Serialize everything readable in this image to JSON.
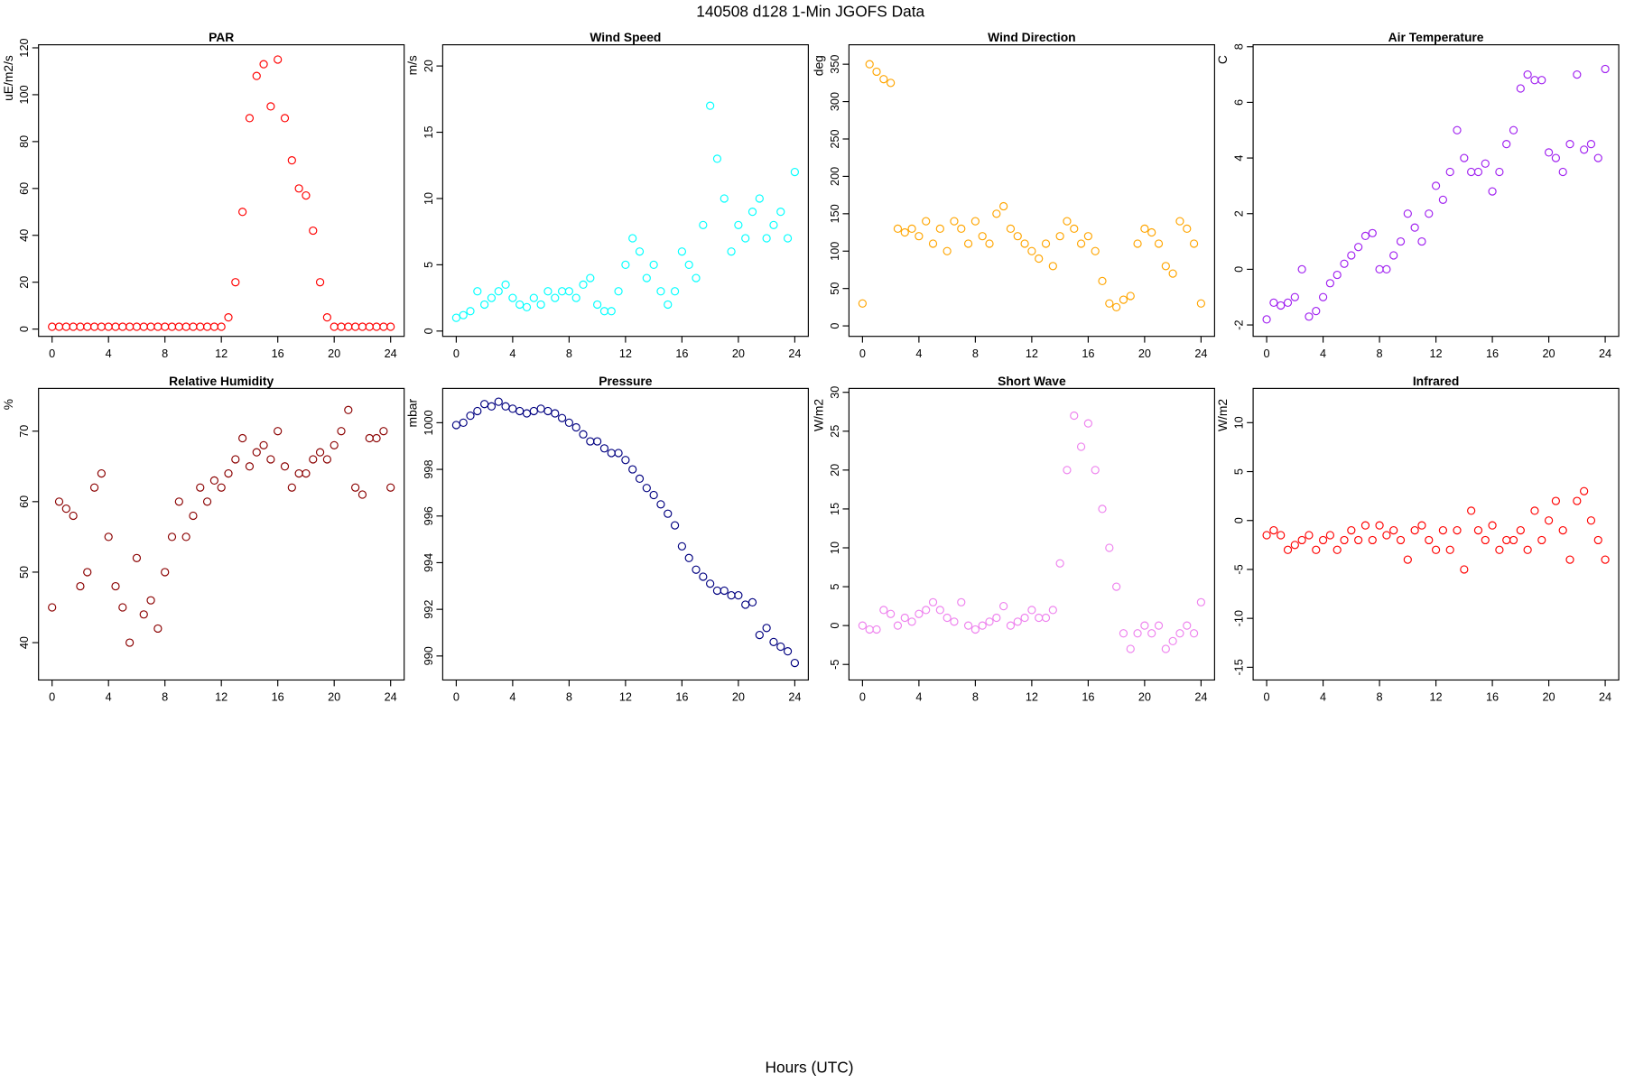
{
  "title": "140508   d128   1-Min  JGOFS Data",
  "xlabel": "Hours (UTC)",
  "chart_data": [
    {
      "type": "scatter",
      "title": "PAR",
      "ylabel": "uE/m2/s",
      "color": "#ff0000",
      "x": [
        0,
        0.5,
        1,
        1.5,
        2,
        2.5,
        3,
        3.5,
        4,
        4.5,
        5,
        5.5,
        6,
        6.5,
        7,
        7.5,
        8,
        8.5,
        9,
        9.5,
        10,
        10.5,
        11,
        11.5,
        12,
        12.5,
        13,
        13.5,
        14,
        14.5,
        15,
        15.5,
        16,
        16.5,
        17,
        17.5,
        18,
        18.5,
        19,
        19.5,
        20,
        20.5,
        21,
        21.5,
        22,
        22.5,
        23,
        23.5,
        24
      ],
      "values": [
        1,
        1,
        1,
        1,
        1,
        1,
        1,
        1,
        1,
        1,
        1,
        1,
        1,
        1,
        1,
        1,
        1,
        1,
        1,
        1,
        1,
        1,
        1,
        1,
        1,
        5,
        20,
        50,
        90,
        108,
        113,
        95,
        115,
        90,
        72,
        60,
        57,
        42,
        20,
        5,
        1,
        1,
        1,
        1,
        1,
        1,
        1,
        1,
        1
      ],
      "xlim": [
        -0.96,
        24.96
      ],
      "ylim": [
        -3.1,
        121.3
      ],
      "xticks": [
        0,
        4,
        8,
        12,
        16,
        20,
        24
      ],
      "yticks": [
        0,
        20,
        40,
        60,
        80,
        100,
        120
      ]
    },
    {
      "type": "scatter",
      "title": "Wind Speed",
      "ylabel": "m/s",
      "color": "#00ffff",
      "x": [
        0,
        0.5,
        1,
        1.5,
        2,
        2.5,
        3,
        3.5,
        4,
        4.5,
        5,
        5.5,
        6,
        6.5,
        7,
        7.5,
        8,
        8.5,
        9,
        9.5,
        10,
        10.5,
        11,
        11.5,
        12,
        12.5,
        13,
        13.5,
        14,
        14.5,
        15,
        15.5,
        16,
        16.5,
        17,
        17.5,
        18,
        18.5,
        19,
        19.5,
        20,
        20.5,
        21,
        21.5,
        22,
        22.5,
        23,
        23.5,
        24
      ],
      "values": [
        1,
        1.2,
        1.5,
        3,
        2,
        2.5,
        3,
        3.5,
        2.5,
        2,
        1.8,
        2.5,
        2,
        3,
        2.5,
        3,
        3,
        2.5,
        3.5,
        4,
        2,
        1.5,
        1.5,
        3,
        5,
        7,
        6,
        4,
        5,
        3,
        2,
        3,
        6,
        5,
        4,
        8,
        17,
        13,
        10,
        6,
        8,
        7,
        9,
        10,
        7,
        8,
        9,
        7,
        12
      ],
      "xlim": [
        -0.96,
        24.96
      ],
      "ylim": [
        -0.4,
        21.6
      ],
      "xticks": [
        0,
        4,
        8,
        12,
        16,
        20,
        24
      ],
      "yticks": [
        0,
        5,
        10,
        15,
        20
      ]
    },
    {
      "type": "scatter",
      "title": "Wind Direction",
      "ylabel": "deg",
      "color": "#ffa500",
      "x": [
        0,
        0.5,
        1,
        1.5,
        2,
        2.5,
        3,
        3.5,
        4,
        4.5,
        5,
        5.5,
        6,
        6.5,
        7,
        7.5,
        8,
        8.5,
        9,
        9.5,
        10,
        10.5,
        11,
        11.5,
        12,
        12.5,
        13,
        13.5,
        14,
        14.5,
        15,
        15.5,
        16,
        16.5,
        17,
        17.5,
        18,
        18.5,
        19,
        19.5,
        20,
        20.5,
        21,
        21.5,
        22,
        22.5,
        23,
        23.5,
        24
      ],
      "values": [
        30,
        350,
        340,
        330,
        325,
        130,
        125,
        130,
        120,
        140,
        110,
        130,
        100,
        140,
        130,
        110,
        140,
        120,
        110,
        150,
        160,
        130,
        120,
        110,
        100,
        90,
        110,
        80,
        120,
        140,
        130,
        110,
        120,
        100,
        60,
        30,
        25,
        35,
        40,
        110,
        130,
        125,
        110,
        80,
        70,
        140,
        130,
        110,
        30
      ],
      "xlim": [
        -0.96,
        24.96
      ],
      "ylim": [
        -14,
        376
      ],
      "xticks": [
        0,
        4,
        8,
        12,
        16,
        20,
        24
      ],
      "yticks": [
        0,
        50,
        100,
        150,
        200,
        250,
        300,
        350
      ]
    },
    {
      "type": "scatter",
      "title": "Air Temperature",
      "ylabel": "C",
      "color": "#a020f0",
      "x": [
        0,
        0.5,
        1,
        1.5,
        2,
        2.5,
        3,
        3.5,
        4,
        4.5,
        5,
        5.5,
        6,
        6.5,
        7,
        7.5,
        8,
        8.5,
        9,
        9.5,
        10,
        10.5,
        11,
        11.5,
        12,
        12.5,
        13,
        13.5,
        14,
        14.5,
        15,
        15.5,
        16,
        16.5,
        17,
        17.5,
        18,
        18.5,
        19,
        19.5,
        20,
        20.5,
        21,
        21.5,
        22,
        22.5,
        23,
        23.5,
        24
      ],
      "values": [
        -1.8,
        -1.2,
        -1.3,
        -1.2,
        -1,
        0,
        -1.7,
        -1.5,
        -1,
        -0.5,
        -0.2,
        0.2,
        0.5,
        0.8,
        1.2,
        1.3,
        0,
        0,
        0.5,
        1,
        2,
        1.5,
        1,
        2,
        3,
        2.5,
        3.5,
        5,
        4,
        3.5,
        3.5,
        3.8,
        2.8,
        3.5,
        4.5,
        5,
        6.5,
        7,
        6.8,
        6.8,
        4.2,
        4,
        3.5,
        4.5,
        7,
        4.3,
        4.5,
        4,
        7.2
      ],
      "xlim": [
        -0.96,
        24.96
      ],
      "ylim": [
        -2.41,
        8.07
      ],
      "xticks": [
        0,
        4,
        8,
        12,
        16,
        20,
        24
      ],
      "yticks": [
        -2,
        0,
        2,
        4,
        6,
        8
      ]
    },
    {
      "type": "scatter",
      "title": "Relative Humidity",
      "ylabel": "%",
      "color": "#8b0000",
      "x": [
        0,
        0.5,
        1,
        1.5,
        2,
        2.5,
        3,
        3.5,
        4,
        4.5,
        5,
        5.5,
        6,
        6.5,
        7,
        7.5,
        8,
        8.5,
        9,
        9.5,
        10,
        10.5,
        11,
        11.5,
        12,
        12.5,
        13,
        13.5,
        14,
        14.5,
        15,
        15.5,
        16,
        16.5,
        17,
        17.5,
        18,
        18.5,
        19,
        19.5,
        20,
        20.5,
        21,
        21.5,
        22,
        22.5,
        23,
        23.5,
        24
      ],
      "values": [
        45,
        60,
        59,
        58,
        48,
        50,
        62,
        64,
        55,
        48,
        45,
        40,
        52,
        44,
        46,
        42,
        50,
        55,
        60,
        55,
        58,
        62,
        60,
        63,
        62,
        64,
        66,
        69,
        65,
        67,
        68,
        66,
        70,
        65,
        62,
        64,
        64,
        66,
        67,
        66,
        68,
        70,
        73,
        62,
        61,
        69,
        69,
        70,
        62
      ],
      "xlim": [
        -0.96,
        24.96
      ],
      "ylim": [
        34.7,
        76.06
      ],
      "xticks": [
        0,
        4,
        8,
        12,
        16,
        20,
        24
      ],
      "yticks": [
        40,
        50,
        60,
        70
      ]
    },
    {
      "type": "scatter",
      "title": "Pressure",
      "ylabel": "mbar",
      "color": "#000080",
      "x": [
        0,
        0.5,
        1,
        1.5,
        2,
        2.5,
        3,
        3.5,
        4,
        4.5,
        5,
        5.5,
        6,
        6.5,
        7,
        7.5,
        8,
        8.5,
        9,
        9.5,
        10,
        10.5,
        11,
        11.5,
        12,
        12.5,
        13,
        13.5,
        14,
        14.5,
        15,
        15.5,
        16,
        16.5,
        17,
        17.5,
        18,
        18.5,
        19,
        19.5,
        20,
        20.5,
        21,
        21.5,
        22,
        22.5,
        23,
        23.5,
        24
      ],
      "values": [
        999.9,
        1000,
        1000.3,
        1000.5,
        1000.8,
        1000.7,
        1000.9,
        1000.7,
        1000.6,
        1000.5,
        1000.4,
        1000.5,
        1000.6,
        1000.5,
        1000.4,
        1000.2,
        1000,
        999.8,
        999.5,
        999.2,
        999.2,
        998.9,
        998.7,
        998.7,
        998.4,
        998,
        997.6,
        997.2,
        996.9,
        996.5,
        996.1,
        995.6,
        994.7,
        994.2,
        993.7,
        993.4,
        993.1,
        992.8,
        992.8,
        992.6,
        992.6,
        992.2,
        992.3,
        990.9,
        991.2,
        990.6,
        990.4,
        990.2,
        989.7
      ],
      "xlim": [
        -0.96,
        24.96
      ],
      "ylim": [
        988.97,
        1001.47
      ],
      "xticks": [
        0,
        4,
        8,
        12,
        16,
        20,
        24
      ],
      "yticks": [
        990,
        992,
        994,
        996,
        998,
        1000
      ]
    },
    {
      "type": "scatter",
      "title": "Short Wave",
      "ylabel": "W/m2",
      "color": "#ee82ee",
      "x": [
        0,
        0.5,
        1,
        1.5,
        2,
        2.5,
        3,
        3.5,
        4,
        4.5,
        5,
        5.5,
        6,
        6.5,
        7,
        7.5,
        8,
        8.5,
        9,
        9.5,
        10,
        10.5,
        11,
        11.5,
        12,
        12.5,
        13,
        13.5,
        14,
        14.5,
        15,
        15.5,
        16,
        16.5,
        17,
        17.5,
        18,
        18.5,
        19,
        19.5,
        20,
        20.5,
        21,
        21.5,
        22,
        22.5,
        23,
        23.5,
        24
      ],
      "values": [
        0,
        -0.5,
        -0.5,
        2,
        1.5,
        0,
        1,
        0.5,
        1.5,
        2,
        3,
        2,
        1,
        0.5,
        3,
        0,
        -0.5,
        0,
        0.5,
        1,
        2.5,
        0,
        0.5,
        1,
        2,
        1,
        1,
        2,
        8,
        20,
        27,
        23,
        26,
        20,
        15,
        10,
        5,
        -1,
        -3,
        -1,
        0,
        -1,
        0,
        -3,
        -2,
        -1,
        0,
        -1,
        3
      ],
      "xlim": [
        -0.96,
        24.96
      ],
      "ylim": [
        -7,
        30.5
      ],
      "xticks": [
        0,
        4,
        8,
        12,
        16,
        20,
        24
      ],
      "yticks": [
        -5,
        0,
        5,
        10,
        15,
        20,
        25,
        30
      ]
    },
    {
      "type": "scatter",
      "title": "Infrared",
      "ylabel": "W/m2",
      "color": "#ff0000",
      "x": [
        0,
        0.5,
        1,
        1.5,
        2,
        2.5,
        3,
        3.5,
        4,
        4.5,
        5,
        5.5,
        6,
        6.5,
        7,
        7.5,
        8,
        8.5,
        9,
        9.5,
        10,
        10.5,
        11,
        11.5,
        12,
        12.5,
        13,
        13.5,
        14,
        14.5,
        15,
        15.5,
        16,
        16.5,
        17,
        17.5,
        18,
        18.5,
        19,
        19.5,
        20,
        20.5,
        21,
        21.5,
        22,
        22.5,
        23,
        23.5,
        24
      ],
      "values": [
        -1.5,
        -1,
        -1.5,
        -3,
        -2.5,
        -2,
        -1.5,
        -3,
        -2,
        -1.5,
        -3,
        -2,
        -1,
        -2,
        -0.5,
        -2,
        -0.5,
        -1.5,
        -1,
        -2,
        -4,
        -1,
        -0.5,
        -2,
        -3,
        -1,
        -3,
        -1,
        -5,
        1,
        -1,
        -2,
        -0.5,
        -3,
        -2,
        -2,
        -1,
        -3,
        1,
        -2,
        0,
        2,
        -1,
        -4,
        2,
        3,
        0,
        -2,
        -4
      ],
      "xlim": [
        -0.96,
        24.96
      ],
      "ylim": [
        -16.3,
        13.5
      ],
      "xticks": [
        0,
        4,
        8,
        12,
        16,
        20,
        24
      ],
      "yticks": [
        -15,
        -10,
        -5,
        0,
        5,
        10
      ]
    }
  ]
}
